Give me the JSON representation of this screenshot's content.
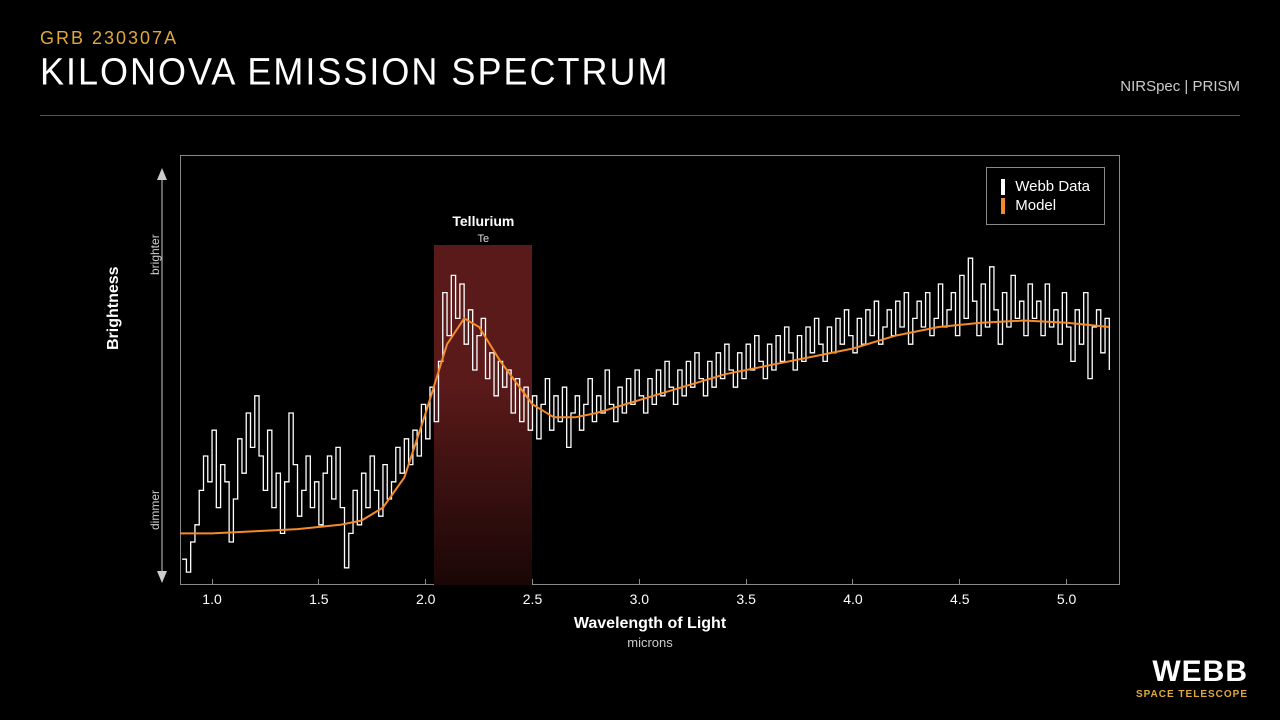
{
  "header": {
    "subtitle": "GRB 230307A",
    "title": "KILONOVA EMISSION SPECTRUM",
    "instrument": "NIRSpec | PRISM"
  },
  "chart": {
    "type": "line",
    "xlabel": "Wavelength of Light",
    "xunit": "microns",
    "ylabel": "Brightness",
    "y_brighter": "brighter",
    "y_dimmer": "dimmer",
    "xlim": [
      0.85,
      5.25
    ],
    "ylim": [
      0,
      100
    ],
    "xticks": [
      1.0,
      1.5,
      2.0,
      2.5,
      3.0,
      3.5,
      4.0,
      4.5,
      5.0
    ],
    "xtick_labels": [
      "1.0",
      "1.5",
      "2.0",
      "2.5",
      "3.0",
      "3.5",
      "4.0",
      "4.5",
      "5.0"
    ],
    "background_color": "#000000",
    "border_color": "#888888",
    "data_color": "#ffffff",
    "model_color": "#f38b2a",
    "data_line_width": 1.3,
    "model_line_width": 2,
    "tellurium": {
      "label": "Tellurium",
      "symbol": "Te",
      "x_start": 2.04,
      "x_end": 2.5,
      "band_color_top": "#5b1a1a",
      "band_color_bottom": "#1a0606"
    },
    "legend": {
      "items": [
        {
          "label": "Webb Data",
          "color": "#ffffff"
        },
        {
          "label": "Model",
          "color": "#f38b2a"
        }
      ]
    },
    "model_points": [
      [
        0.85,
        12
      ],
      [
        1.0,
        12
      ],
      [
        1.2,
        12.5
      ],
      [
        1.4,
        13
      ],
      [
        1.6,
        14
      ],
      [
        1.7,
        15
      ],
      [
        1.8,
        18
      ],
      [
        1.9,
        25
      ],
      [
        2.0,
        40
      ],
      [
        2.1,
        56
      ],
      [
        2.18,
        62
      ],
      [
        2.25,
        60
      ],
      [
        2.35,
        52
      ],
      [
        2.5,
        42
      ],
      [
        2.6,
        39
      ],
      [
        2.7,
        39
      ],
      [
        2.8,
        40
      ],
      [
        3.0,
        43
      ],
      [
        3.2,
        46
      ],
      [
        3.4,
        49
      ],
      [
        3.6,
        51
      ],
      [
        3.8,
        53
      ],
      [
        4.0,
        55
      ],
      [
        4.2,
        58
      ],
      [
        4.4,
        60
      ],
      [
        4.6,
        61
      ],
      [
        4.8,
        61.5
      ],
      [
        5.0,
        61
      ],
      [
        5.2,
        60
      ]
    ],
    "webb_data": [
      [
        0.86,
        6
      ],
      [
        0.88,
        3
      ],
      [
        0.9,
        10
      ],
      [
        0.92,
        14
      ],
      [
        0.94,
        22
      ],
      [
        0.96,
        30
      ],
      [
        0.98,
        24
      ],
      [
        1.0,
        36
      ],
      [
        1.02,
        18
      ],
      [
        1.04,
        28
      ],
      [
        1.06,
        24
      ],
      [
        1.08,
        10
      ],
      [
        1.1,
        20
      ],
      [
        1.12,
        34
      ],
      [
        1.14,
        26
      ],
      [
        1.16,
        40
      ],
      [
        1.18,
        32
      ],
      [
        1.2,
        44
      ],
      [
        1.22,
        30
      ],
      [
        1.24,
        22
      ],
      [
        1.26,
        36
      ],
      [
        1.28,
        18
      ],
      [
        1.3,
        26
      ],
      [
        1.32,
        12
      ],
      [
        1.34,
        24
      ],
      [
        1.36,
        40
      ],
      [
        1.38,
        28
      ],
      [
        1.4,
        16
      ],
      [
        1.42,
        22
      ],
      [
        1.44,
        30
      ],
      [
        1.46,
        18
      ],
      [
        1.48,
        24
      ],
      [
        1.5,
        14
      ],
      [
        1.52,
        26
      ],
      [
        1.54,
        30
      ],
      [
        1.56,
        20
      ],
      [
        1.58,
        32
      ],
      [
        1.6,
        18
      ],
      [
        1.62,
        4
      ],
      [
        1.64,
        12
      ],
      [
        1.66,
        22
      ],
      [
        1.68,
        14
      ],
      [
        1.7,
        26
      ],
      [
        1.72,
        18
      ],
      [
        1.74,
        30
      ],
      [
        1.76,
        22
      ],
      [
        1.78,
        16
      ],
      [
        1.8,
        28
      ],
      [
        1.82,
        20
      ],
      [
        1.84,
        24
      ],
      [
        1.86,
        32
      ],
      [
        1.88,
        26
      ],
      [
        1.9,
        34
      ],
      [
        1.92,
        28
      ],
      [
        1.94,
        36
      ],
      [
        1.96,
        30
      ],
      [
        1.98,
        42
      ],
      [
        2.0,
        34
      ],
      [
        2.02,
        46
      ],
      [
        2.04,
        38
      ],
      [
        2.06,
        52
      ],
      [
        2.08,
        68
      ],
      [
        2.1,
        58
      ],
      [
        2.12,
        72
      ],
      [
        2.14,
        62
      ],
      [
        2.16,
        70
      ],
      [
        2.18,
        56
      ],
      [
        2.2,
        64
      ],
      [
        2.22,
        50
      ],
      [
        2.24,
        58
      ],
      [
        2.26,
        62
      ],
      [
        2.28,
        48
      ],
      [
        2.3,
        54
      ],
      [
        2.32,
        44
      ],
      [
        2.34,
        52
      ],
      [
        2.36,
        46
      ],
      [
        2.38,
        50
      ],
      [
        2.4,
        40
      ],
      [
        2.42,
        48
      ],
      [
        2.44,
        38
      ],
      [
        2.46,
        46
      ],
      [
        2.48,
        36
      ],
      [
        2.5,
        44
      ],
      [
        2.52,
        34
      ],
      [
        2.54,
        42
      ],
      [
        2.56,
        48
      ],
      [
        2.58,
        36
      ],
      [
        2.6,
        44
      ],
      [
        2.62,
        38
      ],
      [
        2.64,
        46
      ],
      [
        2.66,
        32
      ],
      [
        2.68,
        40
      ],
      [
        2.7,
        44
      ],
      [
        2.72,
        36
      ],
      [
        2.74,
        42
      ],
      [
        2.76,
        48
      ],
      [
        2.78,
        38
      ],
      [
        2.8,
        44
      ],
      [
        2.82,
        40
      ],
      [
        2.84,
        50
      ],
      [
        2.86,
        42
      ],
      [
        2.88,
        38
      ],
      [
        2.9,
        46
      ],
      [
        2.92,
        40
      ],
      [
        2.94,
        48
      ],
      [
        2.96,
        42
      ],
      [
        2.98,
        50
      ],
      [
        3.0,
        44
      ],
      [
        3.02,
        40
      ],
      [
        3.04,
        48
      ],
      [
        3.06,
        42
      ],
      [
        3.08,
        50
      ],
      [
        3.1,
        44
      ],
      [
        3.12,
        52
      ],
      [
        3.14,
        46
      ],
      [
        3.16,
        42
      ],
      [
        3.18,
        50
      ],
      [
        3.2,
        44
      ],
      [
        3.22,
        52
      ],
      [
        3.24,
        46
      ],
      [
        3.26,
        54
      ],
      [
        3.28,
        48
      ],
      [
        3.3,
        44
      ],
      [
        3.32,
        52
      ],
      [
        3.34,
        46
      ],
      [
        3.36,
        54
      ],
      [
        3.38,
        48
      ],
      [
        3.4,
        56
      ],
      [
        3.42,
        50
      ],
      [
        3.44,
        46
      ],
      [
        3.46,
        54
      ],
      [
        3.48,
        48
      ],
      [
        3.5,
        56
      ],
      [
        3.52,
        50
      ],
      [
        3.54,
        58
      ],
      [
        3.56,
        52
      ],
      [
        3.58,
        48
      ],
      [
        3.6,
        56
      ],
      [
        3.62,
        50
      ],
      [
        3.64,
        58
      ],
      [
        3.66,
        52
      ],
      [
        3.68,
        60
      ],
      [
        3.7,
        54
      ],
      [
        3.72,
        50
      ],
      [
        3.74,
        58
      ],
      [
        3.76,
        52
      ],
      [
        3.78,
        60
      ],
      [
        3.8,
        54
      ],
      [
        3.82,
        62
      ],
      [
        3.84,
        56
      ],
      [
        3.86,
        52
      ],
      [
        3.88,
        60
      ],
      [
        3.9,
        54
      ],
      [
        3.92,
        62
      ],
      [
        3.94,
        56
      ],
      [
        3.96,
        64
      ],
      [
        3.98,
        58
      ],
      [
        4.0,
        54
      ],
      [
        4.02,
        62
      ],
      [
        4.04,
        56
      ],
      [
        4.06,
        64
      ],
      [
        4.08,
        58
      ],
      [
        4.1,
        66
      ],
      [
        4.12,
        56
      ],
      [
        4.14,
        60
      ],
      [
        4.16,
        64
      ],
      [
        4.18,
        58
      ],
      [
        4.2,
        66
      ],
      [
        4.22,
        60
      ],
      [
        4.24,
        68
      ],
      [
        4.26,
        56
      ],
      [
        4.28,
        62
      ],
      [
        4.3,
        66
      ],
      [
        4.32,
        60
      ],
      [
        4.34,
        68
      ],
      [
        4.36,
        58
      ],
      [
        4.38,
        62
      ],
      [
        4.4,
        70
      ],
      [
        4.42,
        60
      ],
      [
        4.44,
        64
      ],
      [
        4.46,
        68
      ],
      [
        4.48,
        58
      ],
      [
        4.5,
        72
      ],
      [
        4.52,
        62
      ],
      [
        4.54,
        76
      ],
      [
        4.56,
        66
      ],
      [
        4.58,
        58
      ],
      [
        4.6,
        70
      ],
      [
        4.62,
        60
      ],
      [
        4.64,
        74
      ],
      [
        4.66,
        64
      ],
      [
        4.68,
        56
      ],
      [
        4.7,
        68
      ],
      [
        4.72,
        60
      ],
      [
        4.74,
        72
      ],
      [
        4.76,
        62
      ],
      [
        4.78,
        66
      ],
      [
        4.8,
        58
      ],
      [
        4.82,
        70
      ],
      [
        4.84,
        62
      ],
      [
        4.86,
        66
      ],
      [
        4.88,
        58
      ],
      [
        4.9,
        70
      ],
      [
        4.92,
        60
      ],
      [
        4.94,
        64
      ],
      [
        4.96,
        56
      ],
      [
        4.98,
        68
      ],
      [
        5.0,
        60
      ],
      [
        5.02,
        52
      ],
      [
        5.04,
        64
      ],
      [
        5.06,
        56
      ],
      [
        5.08,
        68
      ],
      [
        5.1,
        48
      ],
      [
        5.12,
        60
      ],
      [
        5.14,
        64
      ],
      [
        5.16,
        54
      ],
      [
        5.18,
        62
      ],
      [
        5.2,
        50
      ]
    ]
  },
  "logo": {
    "big": "WEBB",
    "small": "SPACE TELESCOPE"
  }
}
